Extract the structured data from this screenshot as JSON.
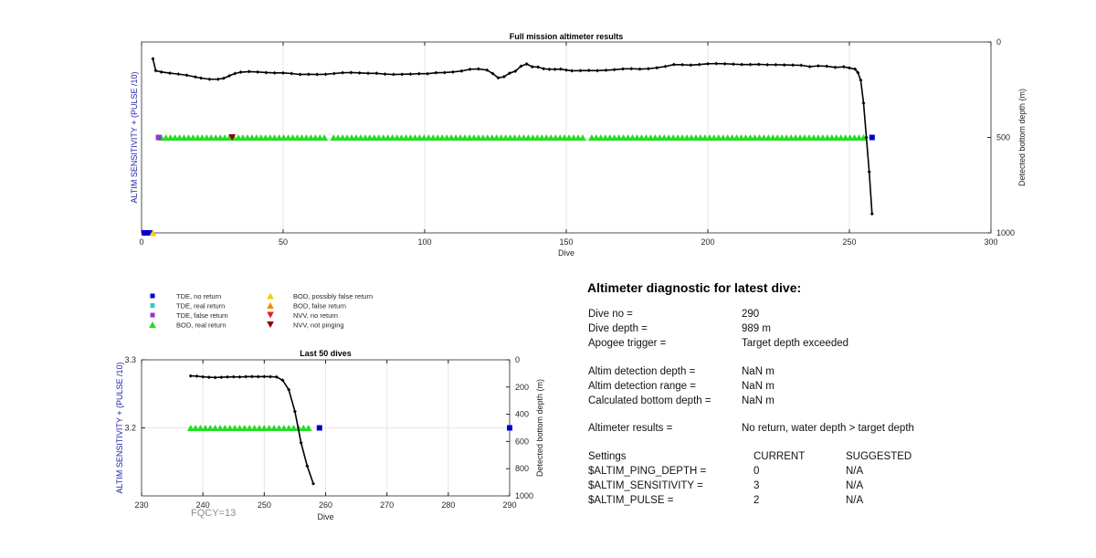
{
  "main_chart": {
    "title": "Full mission altimeter results",
    "xlabel": "Dive",
    "ylabel_left": "ALTIM SENSITIVITY + (PULSE /10)",
    "ylabel_right": "Detected bottom depth (m)",
    "xticks": [
      "0",
      "50",
      "100",
      "150",
      "200",
      "250",
      "300"
    ],
    "yticks_right": [
      "0",
      "500",
      "1000"
    ]
  },
  "legend": {
    "items": [
      {
        "label": "TDE, no return",
        "color": "#0000cc",
        "shape": "square"
      },
      {
        "label": "TDE, real return",
        "color": "#33cccc",
        "shape": "square"
      },
      {
        "label": "TDE, false return",
        "color": "#9933cc",
        "shape": "square"
      },
      {
        "label": "BOD, real return",
        "color": "#22dd22",
        "shape": "triangle-up"
      },
      {
        "label": "BOD, possibly false return",
        "color": "#f2cc00",
        "shape": "triangle-up"
      },
      {
        "label": "BOD, false return",
        "color": "#f28c00",
        "shape": "triangle-up"
      },
      {
        "label": "NVV, no return",
        "color": "#e02020",
        "shape": "triangle-down"
      },
      {
        "label": "NVV, not pinging",
        "color": "#8b0000",
        "shape": "triangle-down"
      }
    ]
  },
  "inset_chart": {
    "title": "Last 50 dives",
    "xlabel": "Dive",
    "ylabel_left": "ALTIM SENSITIVITY + (PULSE /10)",
    "ylabel_right": "Detected bottom depth (m)",
    "xticks": [
      "230",
      "240",
      "250",
      "260",
      "270",
      "280",
      "290"
    ],
    "yticks_left": [
      "3.3",
      "3.2"
    ],
    "yticks_right": [
      "0",
      "200",
      "400",
      "600",
      "800",
      "1000"
    ],
    "footer": "FQCY=13"
  },
  "diagnostic": {
    "title": "Altimeter diagnostic for latest dive:",
    "rows": [
      {
        "label": "Dive no =",
        "value": "290"
      },
      {
        "label": "Dive depth =",
        "value": "989 m"
      },
      {
        "label": "Apogee trigger =",
        "value": "Target depth exceeded"
      },
      {
        "label": "Altim detection depth =",
        "value": "NaN m"
      },
      {
        "label": "Altim detection range =",
        "value": "NaN m"
      },
      {
        "label": "Calculated bottom depth =",
        "value": "NaN m"
      },
      {
        "label": "Altimeter results =",
        "value": "No return, water depth > target depth"
      }
    ],
    "settings": {
      "header_label": "Settings",
      "header_current": "CURRENT",
      "header_suggested": "SUGGESTED",
      "items": [
        {
          "name": "$ALTIM_PING_DEPTH =",
          "current": "0",
          "suggested": "N/A"
        },
        {
          "name": "$ALTIM_SENSITIVITY =",
          "current": "3",
          "suggested": "N/A"
        },
        {
          "name": "$ALTIM_PULSE =",
          "current": "2",
          "suggested": "N/A"
        }
      ]
    }
  },
  "chart_data": [
    {
      "type": "scatter",
      "title": "Full mission altimeter results",
      "xlabel": "Dive",
      "ylabel_left": "ALTIM SENSITIVITY + (PULSE /10)",
      "ylabel_right": "Detected bottom depth (m)",
      "xlim": [
        0,
        300
      ],
      "ylim_right": [
        1000,
        0
      ],
      "grid": "vertical",
      "series": [
        {
          "name": "Detected bottom depth",
          "kind": "line",
          "x": [
            4,
            5,
            7,
            10,
            13,
            16,
            19,
            21,
            24,
            27,
            29,
            31,
            33,
            35,
            38,
            41,
            44,
            47,
            50,
            53,
            56,
            59,
            62,
            65,
            68,
            71,
            74,
            77,
            80,
            83,
            86,
            89,
            92,
            95,
            98,
            101,
            104,
            107,
            110,
            113,
            116,
            119,
            122,
            124,
            126,
            128,
            130,
            132,
            134,
            136,
            138,
            140,
            142,
            144,
            146,
            148,
            150,
            152,
            155,
            158,
            161,
            164,
            167,
            170,
            173,
            176,
            179,
            182,
            185,
            188,
            191,
            194,
            197,
            200,
            203,
            206,
            209,
            212,
            215,
            218,
            221,
            224,
            227,
            230,
            233,
            236,
            239,
            242,
            245,
            248,
            250,
            252,
            253,
            254,
            255,
            256,
            257,
            258
          ],
          "y": [
            88,
            150,
            157,
            163,
            168,
            174,
            183,
            189,
            195,
            195,
            190,
            177,
            165,
            158,
            155,
            157,
            160,
            162,
            162,
            165,
            170,
            169,
            170,
            169,
            165,
            161,
            160,
            162,
            164,
            164,
            168,
            170,
            169,
            168,
            166,
            166,
            161,
            160,
            157,
            152,
            143,
            141,
            147,
            165,
            188,
            182,
            163,
            153,
            127,
            115,
            130,
            131,
            140,
            143,
            143,
            142,
            147,
            151,
            150,
            149,
            150,
            148,
            145,
            141,
            140,
            142,
            140,
            135,
            128,
            118,
            119,
            121,
            118,
            114,
            113,
            114,
            116,
            118,
            118,
            117,
            119,
            119,
            120,
            121,
            122,
            129,
            125,
            127,
            133,
            130,
            136,
            142,
            160,
            200,
            320,
            500,
            680,
            900
          ]
        },
        {
          "name": "BOD, real return",
          "kind": "triangle-up",
          "color": "#22dd22",
          "x_from": 7,
          "x_to": 255,
          "y": 500,
          "gaps": [
            [
              66,
              67
            ],
            [
              81,
              82
            ],
            [
              156,
              158
            ]
          ]
        },
        {
          "name": "TDE, false return",
          "kind": "square",
          "color": "#9933cc",
          "x": [
            6
          ],
          "y": [
            500
          ]
        },
        {
          "name": "NVV, not pinging",
          "kind": "triangle-down",
          "color": "#8b0000",
          "x": [
            32
          ],
          "y": [
            500
          ]
        },
        {
          "name": "TDE, no return",
          "kind": "square",
          "color": "#0000cc",
          "x": [
            1,
            2,
            3,
            258
          ],
          "y": [
            1000,
            1000,
            1000,
            500
          ]
        },
        {
          "name": "BOD, possibly false return",
          "kind": "triangle-up",
          "color": "#f2cc00",
          "x": [
            4
          ],
          "y": [
            1000
          ]
        }
      ]
    },
    {
      "type": "scatter",
      "title": "Last 50 dives",
      "xlabel": "Dive",
      "ylabel_left": "ALTIM SENSITIVITY + (PULSE /10)",
      "ylabel_right": "Detected bottom depth (m)",
      "xlim": [
        230,
        290
      ],
      "ylim_left": [
        3.1,
        3.3
      ],
      "ylim_right": [
        1000,
        0
      ],
      "grid": "vertical",
      "series": [
        {
          "name": "Detected bottom depth",
          "kind": "line",
          "x": [
            238,
            239,
            240,
            241,
            242,
            243,
            244,
            245,
            246,
            247,
            248,
            249,
            250,
            251,
            252,
            253,
            254,
            255,
            256,
            257,
            258
          ],
          "y": [
            118,
            120,
            125,
            128,
            130,
            128,
            126,
            125,
            126,
            124,
            123,
            124,
            123,
            124,
            126,
            150,
            220,
            380,
            610,
            780,
            910
          ]
        },
        {
          "name": "BOD, real return",
          "kind": "triangle-up",
          "color": "#22dd22",
          "x_from": 238,
          "x_to": 258,
          "y": 3.2
        },
        {
          "name": "TDE, no return",
          "kind": "square",
          "color": "#0000cc",
          "x": [
            259,
            290
          ],
          "y": [
            3.2,
            3.2
          ]
        }
      ]
    }
  ]
}
